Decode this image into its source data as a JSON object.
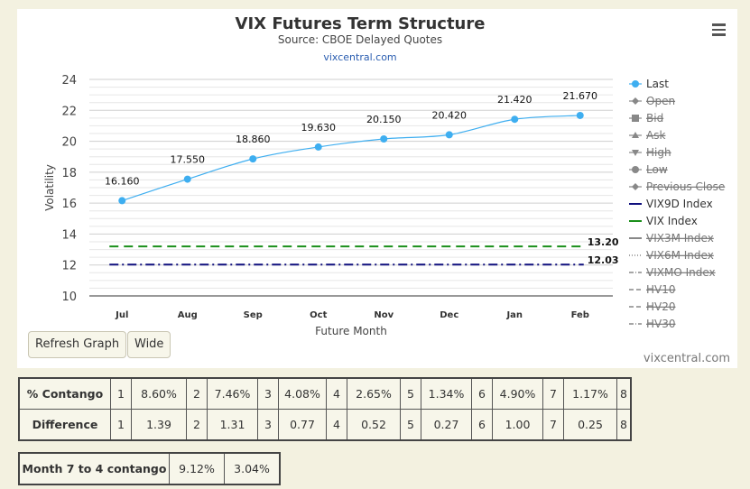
{
  "chart_data": {
    "type": "line",
    "title": "VIX Futures Term Structure",
    "subtitle": "Source: CBOE Delayed Quotes",
    "source_link": "vixcentral.com",
    "credit": "vixcentral.com",
    "xlabel": "Future Month",
    "ylabel": "Volatility",
    "categories": [
      "Jul",
      "Aug",
      "Sep",
      "Oct",
      "Nov",
      "Dec",
      "Jan",
      "Feb"
    ],
    "ylim": [
      10,
      24
    ],
    "yticks": [
      10,
      12,
      14,
      16,
      18,
      20,
      22,
      24
    ],
    "series": [
      {
        "name": "Last",
        "values": [
          16.16,
          17.55,
          18.86,
          19.63,
          20.15,
          20.42,
          21.42,
          21.67
        ],
        "labels": [
          "16.160",
          "17.550",
          "18.860",
          "19.630",
          "20.150",
          "20.420",
          "21.420",
          "21.670"
        ]
      }
    ],
    "reference_lines": [
      {
        "name": "VIX Index",
        "value": 13.2,
        "label": "13.20",
        "color": "#1a8f1a",
        "dash": "10,6"
      },
      {
        "name": "VIX9D Index",
        "value": 12.03,
        "label": "12.03",
        "color": "#10107e",
        "dash": "10,4,2,4"
      }
    ],
    "legend_position": "right",
    "legend": [
      {
        "label": "Last",
        "enabled": true,
        "symbol": "circle",
        "color": "#3eaef0"
      },
      {
        "label": "Open",
        "enabled": false,
        "symbol": "diamond",
        "color": "#777"
      },
      {
        "label": "Bid",
        "enabled": false,
        "symbol": "square",
        "color": "#777"
      },
      {
        "label": "Ask",
        "enabled": false,
        "symbol": "triangle",
        "color": "#777"
      },
      {
        "label": "High",
        "enabled": false,
        "symbol": "triangle-down",
        "color": "#777"
      },
      {
        "label": "Low",
        "enabled": false,
        "symbol": "circle",
        "color": "#777"
      },
      {
        "label": "Previous Close",
        "enabled": false,
        "symbol": "diamond",
        "color": "#777"
      },
      {
        "label": "VIX9D Index",
        "enabled": true,
        "symbol": "line",
        "color": "#10107e"
      },
      {
        "label": "VIX Index",
        "enabled": true,
        "symbol": "line",
        "color": "#1a8f1a"
      },
      {
        "label": "VIX3M Index",
        "enabled": false,
        "symbol": "line",
        "color": "#777"
      },
      {
        "label": "VIX6M Index",
        "enabled": false,
        "symbol": "dotted",
        "color": "#777"
      },
      {
        "label": "VIXMO Index",
        "enabled": false,
        "symbol": "dashdot",
        "color": "#777"
      },
      {
        "label": "HV10",
        "enabled": false,
        "symbol": "dash",
        "color": "#777"
      },
      {
        "label": "HV20",
        "enabled": false,
        "symbol": "dash",
        "color": "#777"
      },
      {
        "label": "HV30",
        "enabled": false,
        "symbol": "dashdot",
        "color": "#777"
      }
    ]
  },
  "buttons": {
    "refresh": "Refresh Graph",
    "wide": "Wide"
  },
  "contango_table": {
    "rows": [
      {
        "header": "% Contango",
        "cells": [
          "1",
          "8.60%",
          "2",
          "7.46%",
          "3",
          "4.08%",
          "4",
          "2.65%",
          "5",
          "1.34%",
          "6",
          "4.90%",
          "7",
          "1.17%",
          "8"
        ]
      },
      {
        "header": "Difference",
        "cells": [
          "1",
          "1.39",
          "2",
          "1.31",
          "3",
          "0.77",
          "4",
          "0.52",
          "5",
          "0.27",
          "6",
          "1.00",
          "7",
          "0.25",
          "8"
        ]
      }
    ]
  },
  "month_table": {
    "header": "Month 7 to 4 contango",
    "values": [
      "9.12%",
      "3.04%"
    ]
  }
}
